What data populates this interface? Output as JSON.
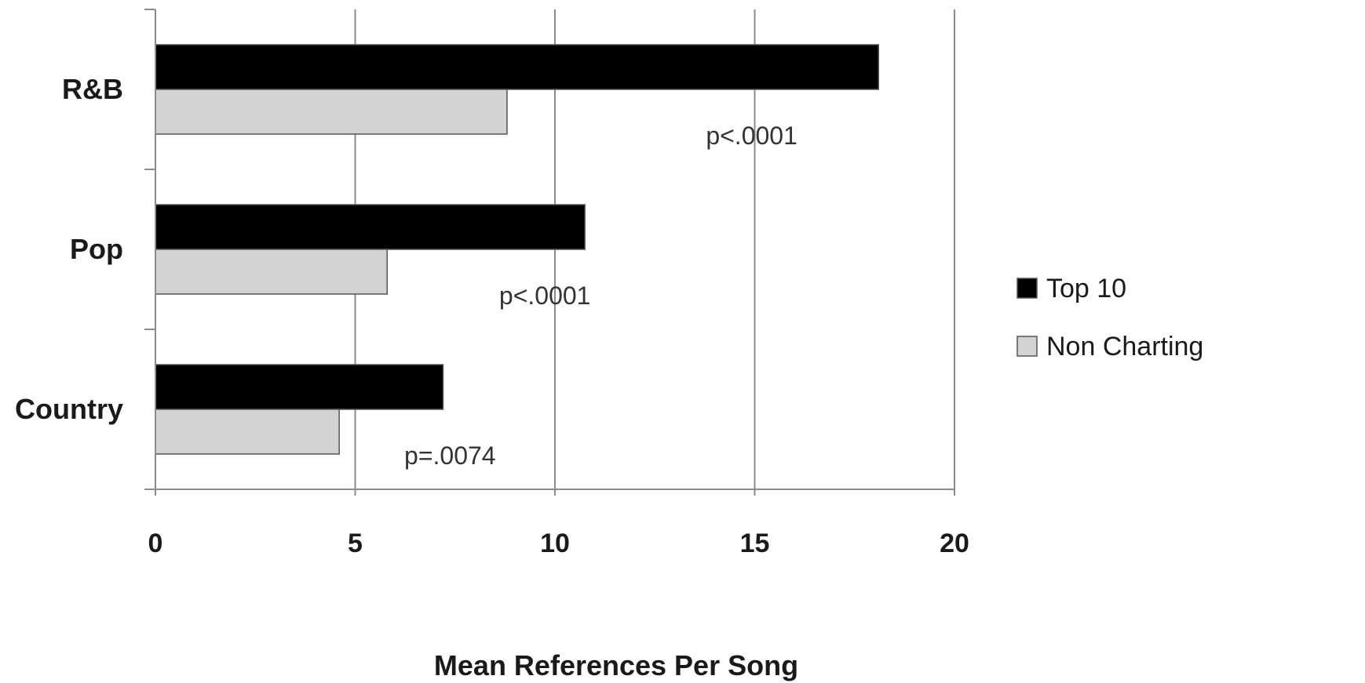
{
  "chart_data": {
    "type": "bar",
    "orientation": "horizontal",
    "categories": [
      "R&B",
      "Pop",
      "Country"
    ],
    "series": [
      {
        "name": "Top 10",
        "values": [
          18.1,
          10.75,
          7.2
        ],
        "color": "#000000"
      },
      {
        "name": "Non Charting",
        "values": [
          8.8,
          5.8,
          4.6
        ],
        "color": "#d3d3d3"
      }
    ],
    "annotations": [
      "p<.0001",
      "p<.0001",
      "p=.0074"
    ],
    "xlabel": "Mean References Per Song",
    "ylabel": "",
    "xlim": [
      0,
      20
    ],
    "xticks": [
      "0",
      "5",
      "10",
      "15",
      "20"
    ],
    "grid": "vertical",
    "legend_position": "right"
  }
}
